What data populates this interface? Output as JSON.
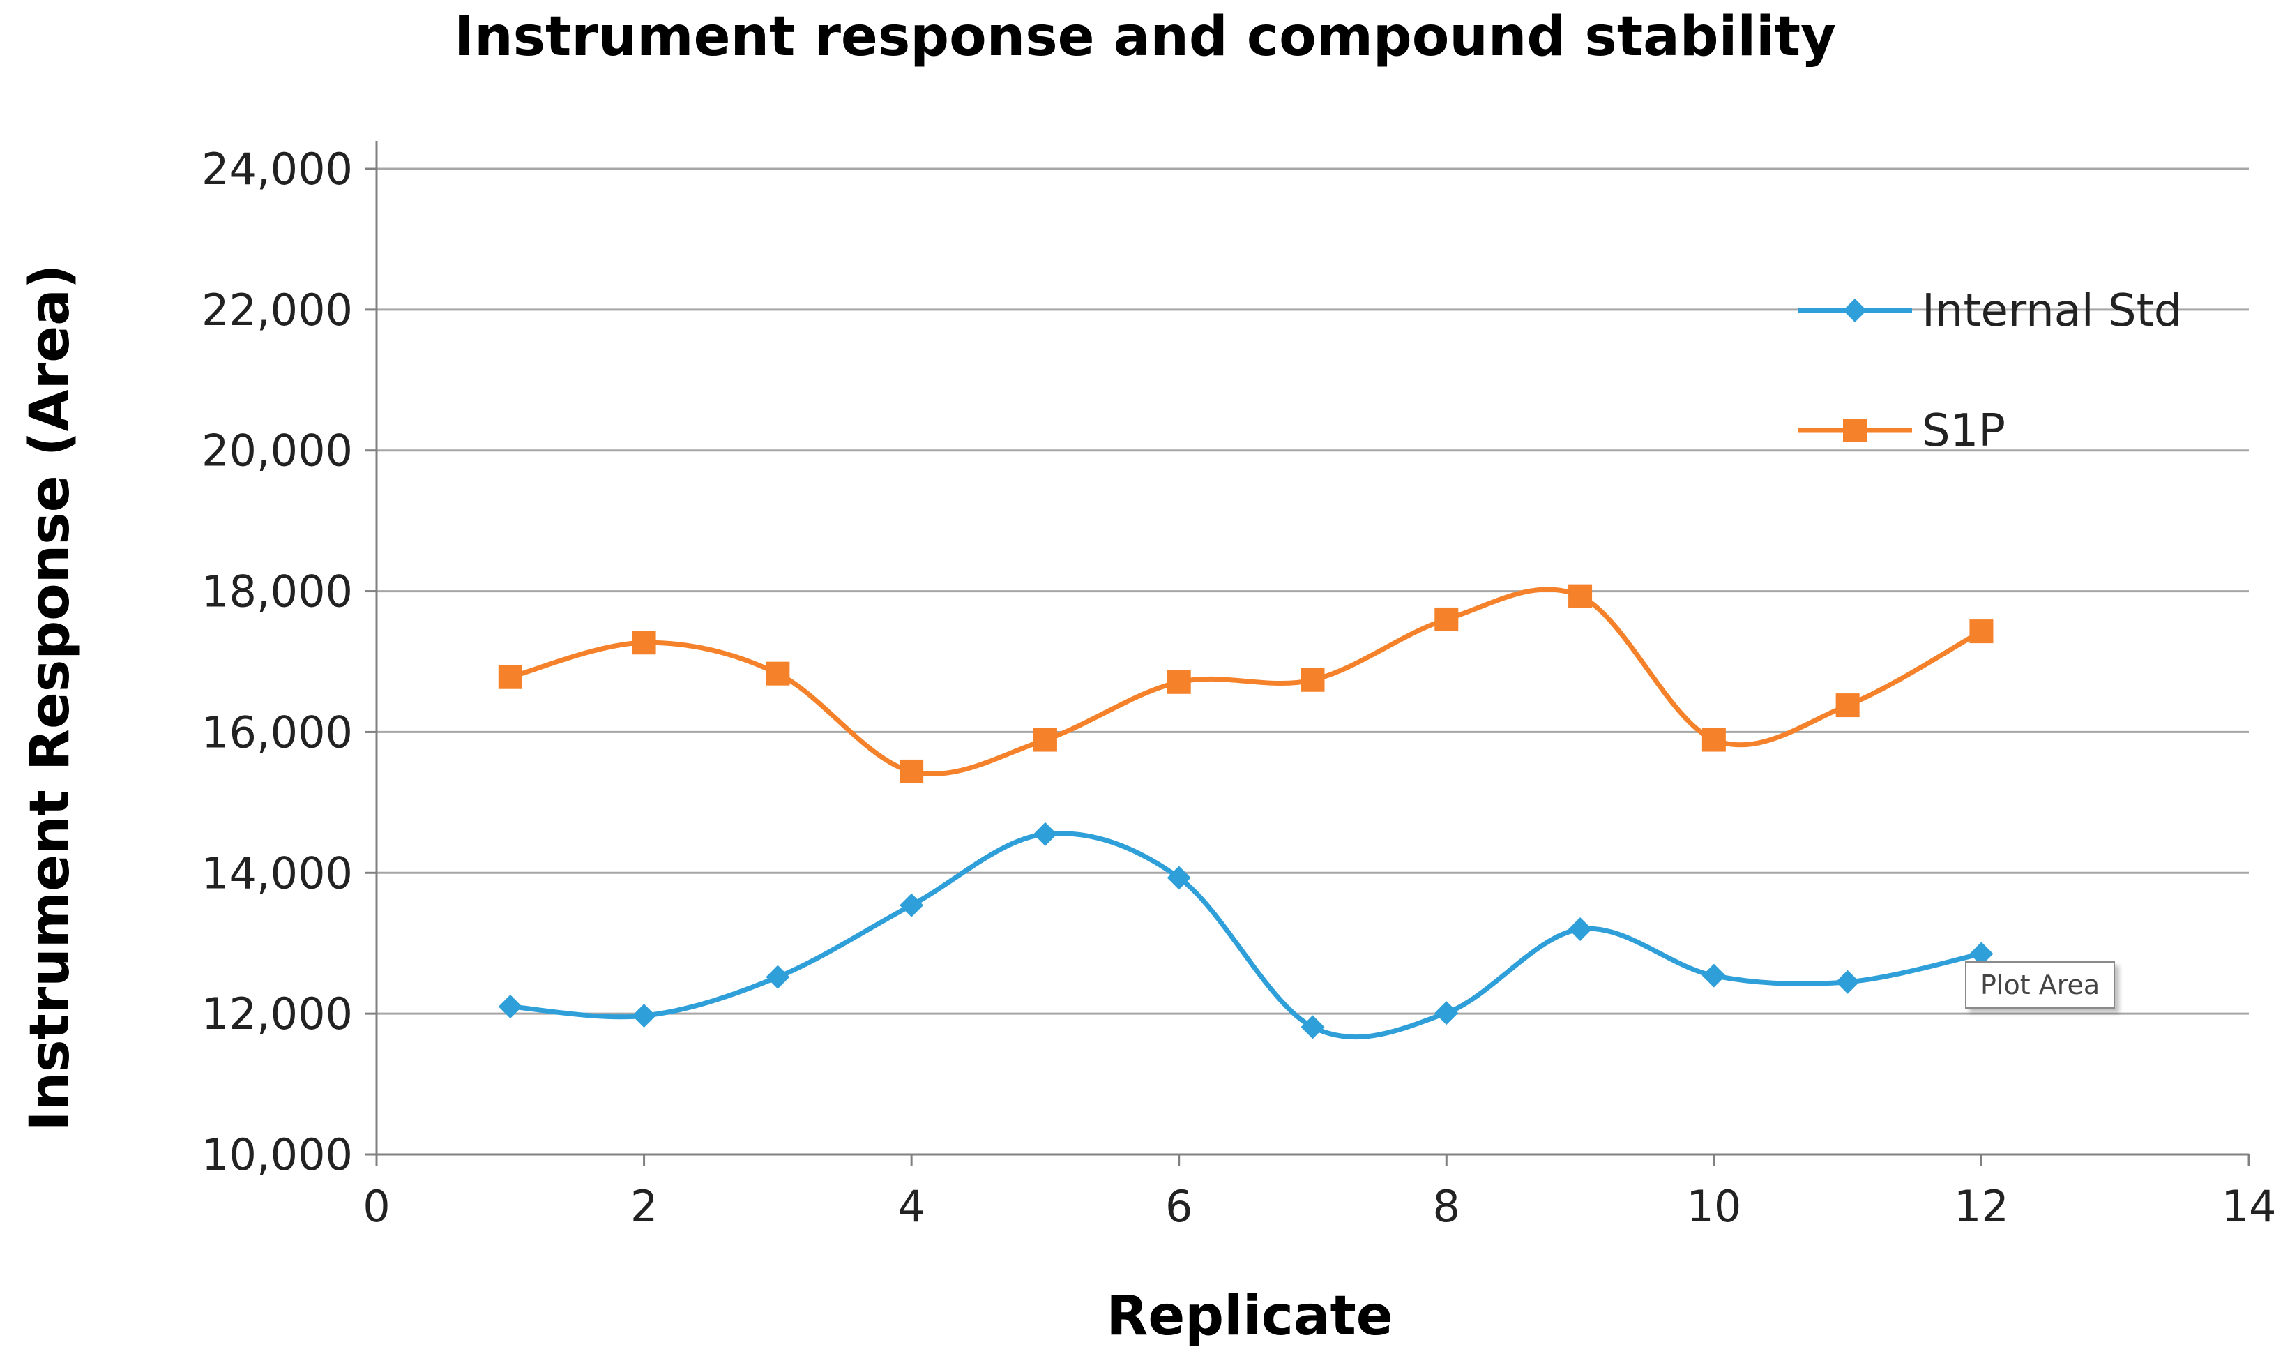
{
  "chart_data": {
    "type": "line",
    "title": "Instrument response and compound stability",
    "xlabel": "Replicate",
    "ylabel": "Instrument Response (Area)",
    "xlim": [
      0,
      14
    ],
    "ylim": [
      10000,
      24000
    ],
    "x_ticks": [
      0,
      2,
      4,
      6,
      8,
      10,
      12,
      14
    ],
    "y_ticks": [
      10000,
      12000,
      14000,
      16000,
      18000,
      20000,
      22000,
      24000
    ],
    "x_tick_labels": [
      "0",
      "2",
      "4",
      "6",
      "8",
      "10",
      "12",
      "14"
    ],
    "y_tick_labels": [
      "10,000",
      "12,000",
      "14,000",
      "16,000",
      "18,000",
      "20,000",
      "22,000",
      "24,000"
    ],
    "grid": "horizontal",
    "legend_position": "top-right",
    "smoothed": true,
    "x": [
      1,
      2,
      3,
      4,
      5,
      6,
      7,
      8,
      9,
      10,
      11,
      12
    ],
    "series": [
      {
        "name": "Internal Std",
        "color": "#2E9FD8",
        "marker": "diamond",
        "values": [
          12100,
          11970,
          12520,
          13540,
          14550,
          13930,
          11810,
          12010,
          13200,
          12540,
          12450,
          12850
        ]
      },
      {
        "name": "S1P",
        "color": "#F5822A",
        "marker": "square",
        "values": [
          16780,
          17270,
          16830,
          15440,
          15890,
          16710,
          16740,
          17600,
          17930,
          15890,
          16380,
          17430
        ]
      }
    ]
  },
  "tooltip": {
    "text": "Plot Area"
  }
}
